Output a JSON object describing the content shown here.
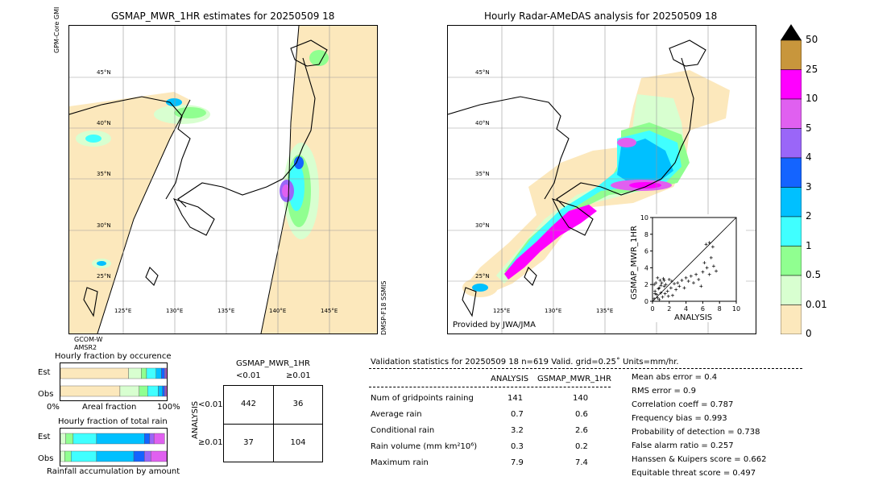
{
  "left_panel": {
    "title": "GSMAP_MWR_1HR estimates for 20250509 18",
    "sensor_top": "GPM-Core GMI",
    "sensor_bottom_left": "GCOM-W AMSR2",
    "sensor_right": "DMSP-F18 SSMIS",
    "lat_labels": [
      "45°N",
      "40°N",
      "35°N",
      "30°N",
      "25°N"
    ],
    "lon_labels": [
      "125°E",
      "130°E",
      "135°E",
      "140°E",
      "145°E"
    ]
  },
  "right_panel": {
    "title": "Hourly Radar-AMeDAS analysis for 20250509 18",
    "credit": "Provided by JWA/JMA",
    "lat_labels": [
      "45°N",
      "40°N",
      "35°N",
      "30°N",
      "25°N"
    ],
    "lon_labels": [
      "125°E",
      "130°E",
      "135°E"
    ]
  },
  "colorbar": {
    "labels": [
      "50",
      "25",
      "10",
      "5",
      "4",
      "3",
      "2",
      "1",
      "0.5",
      "0.01",
      "0"
    ],
    "colors": [
      "#c8963c",
      "#ff00ff",
      "#e060f0",
      "#9a66f8",
      "#1464ff",
      "#00c0ff",
      "#40ffff",
      "#90ff90",
      "#d8ffd0",
      "#fce8bc"
    ],
    "over_color": "#000000"
  },
  "chart_data": [
    {
      "type": "scatter",
      "title": "",
      "xlabel": "ANALYSIS",
      "ylabel": "GSMAP_MWR_1HR",
      "xlim": [
        0,
        10
      ],
      "ylim": [
        0,
        10
      ],
      "x_ticks": [
        "0",
        "2",
        "4",
        "6",
        "8",
        "10"
      ],
      "y_ticks": [
        "0",
        "2",
        "4",
        "6",
        "8",
        "10"
      ],
      "reference_line": "y=x",
      "points": [
        [
          0.2,
          0.3
        ],
        [
          0.3,
          1.2
        ],
        [
          0.4,
          2.2
        ],
        [
          0.5,
          0.8
        ],
        [
          0.6,
          2.8
        ],
        [
          0.7,
          1.5
        ],
        [
          0.8,
          0.2
        ],
        [
          0.9,
          2.5
        ],
        [
          1.0,
          1.0
        ],
        [
          1.1,
          2.2
        ],
        [
          1.2,
          0.5
        ],
        [
          1.3,
          2.7
        ],
        [
          1.4,
          1.8
        ],
        [
          1.5,
          0.9
        ],
        [
          1.6,
          2.0
        ],
        [
          1.8,
          1.2
        ],
        [
          2.0,
          2.6
        ],
        [
          2.2,
          1.6
        ],
        [
          2.4,
          0.7
        ],
        [
          2.6,
          2.1
        ],
        [
          2.8,
          1.4
        ],
        [
          3.0,
          2.2
        ],
        [
          3.2,
          1.8
        ],
        [
          3.5,
          2.5
        ],
        [
          3.8,
          1.6
        ],
        [
          4.0,
          2.8
        ],
        [
          4.3,
          2.4
        ],
        [
          4.6,
          3.0
        ],
        [
          4.9,
          2.2
        ],
        [
          5.2,
          3.2
        ],
        [
          5.5,
          2.6
        ],
        [
          5.8,
          1.8
        ],
        [
          6.0,
          3.5
        ],
        [
          6.2,
          4.6
        ],
        [
          6.5,
          4.0
        ],
        [
          6.8,
          3.2
        ],
        [
          7.0,
          5.2
        ],
        [
          7.3,
          4.2
        ],
        [
          7.6,
          3.6
        ],
        [
          6.4,
          6.8
        ],
        [
          6.8,
          7.0
        ],
        [
          7.2,
          6.5
        ],
        [
          0.3,
          0.9
        ],
        [
          0.6,
          0.4
        ],
        [
          1.0,
          1.9
        ],
        [
          1.4,
          2.5
        ],
        [
          0.2,
          2.0
        ],
        [
          0.8,
          1.6
        ],
        [
          1.9,
          0.6
        ],
        [
          2.3,
          2.4
        ]
      ]
    },
    {
      "type": "bar",
      "title": "Hourly fraction by occurence",
      "categories": [
        "Est",
        "Obs"
      ],
      "stacked": true,
      "xlabel": "Areal fraction",
      "x_tick_labels": [
        "0%",
        "100%"
      ],
      "colors": [
        "#fce8bc",
        "#d8ffd0",
        "#90ff90",
        "#40ffff",
        "#00c0ff",
        "#1464ff",
        "#9a66f8",
        "#e060f0"
      ],
      "series_values": [
        [
          0.64,
          0.12,
          0.05,
          0.09,
          0.05,
          0.03,
          0.01,
          0.01
        ],
        [
          0.56,
          0.18,
          0.08,
          0.1,
          0.04,
          0.02,
          0.01,
          0.01
        ]
      ]
    },
    {
      "type": "bar",
      "title": "Hourly fraction of total rain",
      "categories": [
        "Est",
        "Obs"
      ],
      "stacked": true,
      "xlabel": "Rainfall accumulation by amount",
      "colors": [
        "#fce8bc",
        "#d8ffd0",
        "#90ff90",
        "#40ffff",
        "#00c0ff",
        "#1464ff",
        "#9a66f8",
        "#e060f0"
      ],
      "series_values": [
        [
          0.0,
          0.05,
          0.07,
          0.22,
          0.45,
          0.05,
          0.04,
          0.1
        ],
        [
          0.0,
          0.04,
          0.06,
          0.24,
          0.35,
          0.1,
          0.06,
          0.15
        ]
      ]
    }
  ],
  "contingency": {
    "title": "GSMAP_MWR_1HR",
    "col_labels": [
      "<0.01",
      "≥0.01"
    ],
    "row_labels": [
      "<0.01",
      "≥0.01"
    ],
    "side_label": "ANALYSIS",
    "values": [
      [
        "442",
        "36"
      ],
      [
        "37",
        "104"
      ]
    ]
  },
  "validation": {
    "header": "Validation statistics for 20250509 18  n=619 Valid. grid=0.25˚ Units=mm/hr.",
    "col1": "ANALYSIS",
    "col2": "GSMAP_MWR_1HR",
    "rows": [
      {
        "label": "Num of gridpoints raining",
        "a": "141",
        "b": "140"
      },
      {
        "label": "Average rain",
        "a": "0.7",
        "b": "0.6"
      },
      {
        "label": "Conditional rain",
        "a": "3.2",
        "b": "2.6"
      },
      {
        "label": "Rain volume (mm km²10⁶)",
        "a": "0.3",
        "b": "0.2"
      },
      {
        "label": "Maximum rain",
        "a": "7.9",
        "b": "7.4"
      }
    ],
    "scores": [
      "Mean abs error =    0.4",
      "RMS error =    0.9",
      "Correlation coeff =  0.787",
      "Frequency bias =  0.993",
      "Probability of detection =  0.738",
      "False alarm ratio =  0.257",
      "Hanssen & Kuipers score =  0.662",
      "Equitable threat score =  0.497"
    ]
  }
}
